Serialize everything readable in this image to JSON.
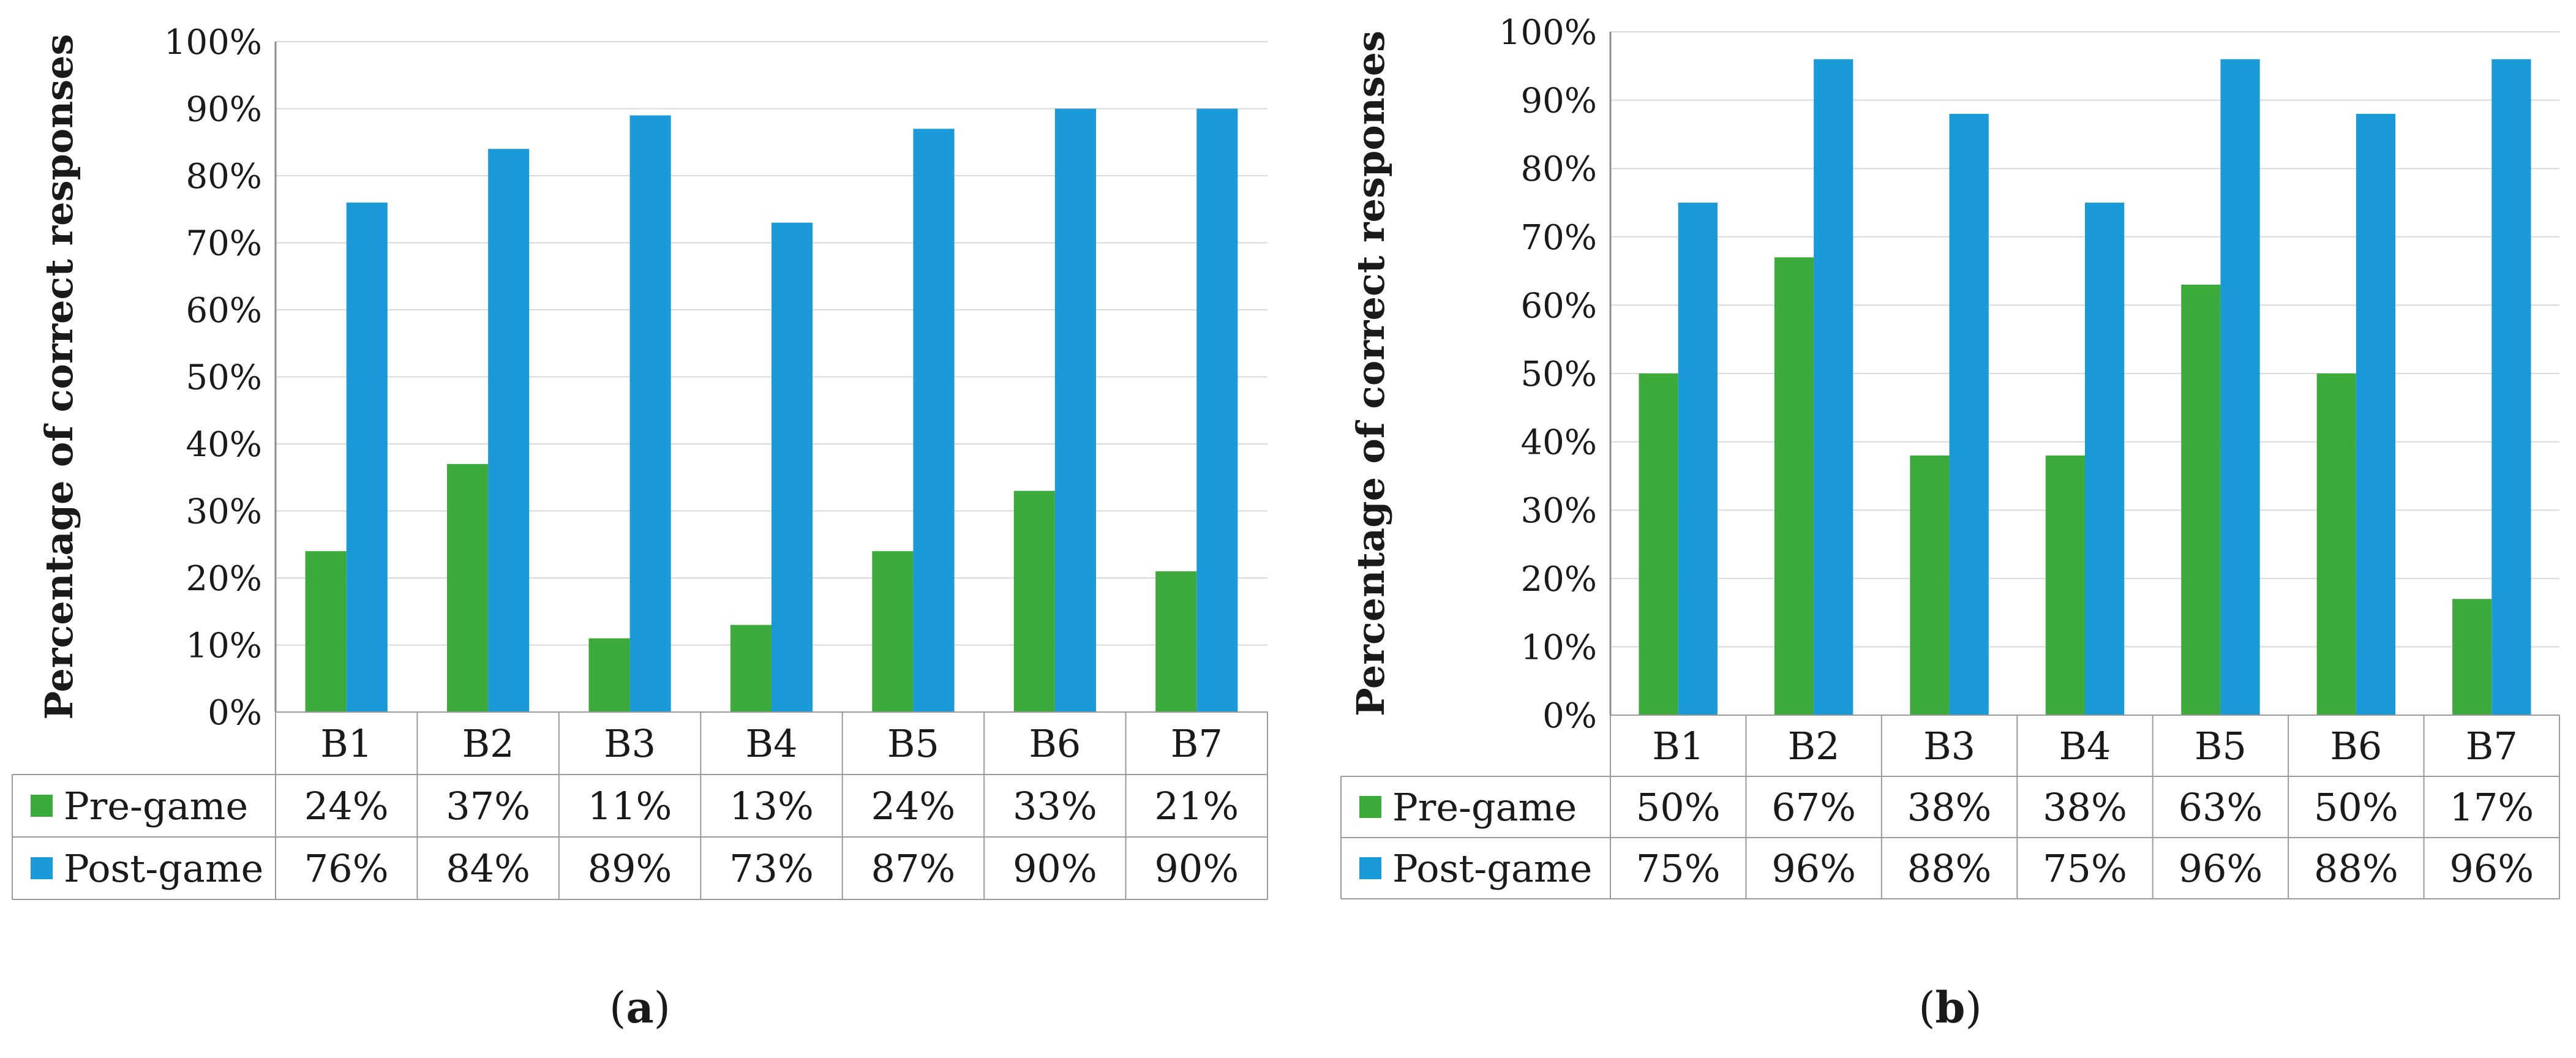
{
  "colors": {
    "pre": "#3cab3c",
    "post": "#1a9ad8"
  },
  "chart_data": [
    {
      "type": "bar",
      "panel": "a",
      "caption_open": "(",
      "caption_letter": "a",
      "caption_close": ")",
      "ylabel": "Percentage of correct responses",
      "ylim": [
        0,
        100
      ],
      "yticks": [
        "0%",
        "10%",
        "20%",
        "30%",
        "40%",
        "50%",
        "60%",
        "70%",
        "80%",
        "90%",
        "100%"
      ],
      "grid": true,
      "categories": [
        "B1",
        "B2",
        "B3",
        "B4",
        "B5",
        "B6",
        "B7"
      ],
      "series": [
        {
          "name": "Pre-game",
          "values": [
            24,
            37,
            11,
            13,
            24,
            33,
            21
          ],
          "labels": [
            "24%",
            "37%",
            "11%",
            "13%",
            "24%",
            "33%",
            "21%"
          ]
        },
        {
          "name": "Post-game",
          "values": [
            76,
            84,
            89,
            73,
            87,
            90,
            90
          ],
          "labels": [
            "76%",
            "84%",
            "89%",
            "73%",
            "87%",
            "90%",
            "90%"
          ]
        }
      ]
    },
    {
      "type": "bar",
      "panel": "b",
      "caption_open": "(",
      "caption_letter": "b",
      "caption_close": ")",
      "ylabel": "Percentage of correct responses",
      "ylim": [
        0,
        100
      ],
      "yticks": [
        "0%",
        "10%",
        "20%",
        "30%",
        "40%",
        "50%",
        "60%",
        "70%",
        "80%",
        "90%",
        "100%"
      ],
      "grid": true,
      "categories": [
        "B1",
        "B2",
        "B3",
        "B4",
        "B5",
        "B6",
        "B7"
      ],
      "series": [
        {
          "name": "Pre-game",
          "values": [
            50,
            67,
            38,
            38,
            63,
            50,
            17
          ],
          "labels": [
            "50%",
            "67%",
            "38%",
            "38%",
            "63%",
            "50%",
            "17%"
          ]
        },
        {
          "name": "Post-game",
          "values": [
            75,
            96,
            88,
            75,
            96,
            88,
            96
          ],
          "labels": [
            "75%",
            "96%",
            "88%",
            "75%",
            "96%",
            "88%",
            "96%"
          ]
        }
      ]
    }
  ]
}
